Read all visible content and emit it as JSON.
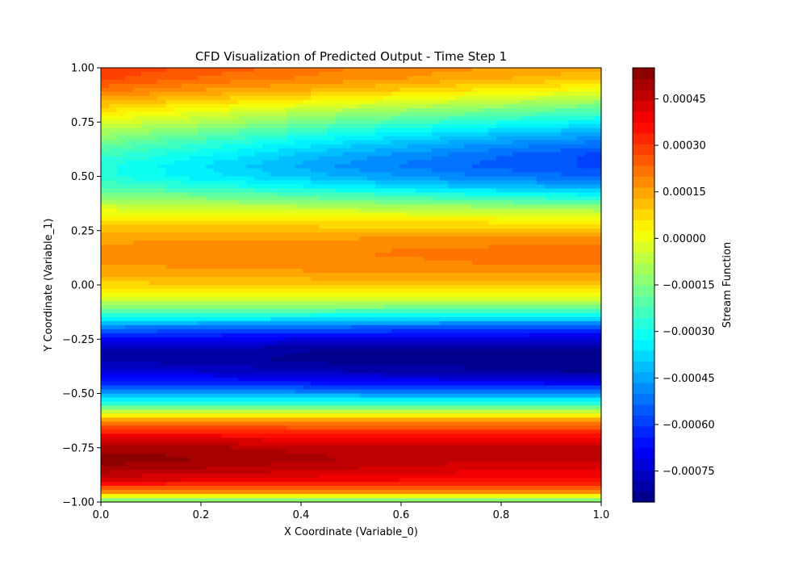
{
  "chart_data": {
    "type": "heatmap",
    "title": "CFD Visualization of Predicted Output - Time Step 1",
    "xlabel": "X Coordinate (Variable_0)",
    "ylabel": "Y Coordinate (Variable_1)",
    "colorbar_label": "Stream Function",
    "colormap": "jet",
    "xlim": [
      0.0,
      1.0
    ],
    "ylim": [
      -1.0,
      1.0
    ],
    "x_ticks": [
      "0.0",
      "0.2",
      "0.4",
      "0.6",
      "0.8",
      "1.0"
    ],
    "y_ticks": [
      "−1.00",
      "−0.75",
      "−0.50",
      "−0.25",
      "0.00",
      "0.25",
      "0.50",
      "0.75",
      "1.00"
    ],
    "colorbar_range": [
      -0.00085,
      0.00055
    ],
    "colorbar_ticks": [
      {
        "value": 0.00045,
        "label": "0.00045"
      },
      {
        "value": 0.0003,
        "label": "0.00030"
      },
      {
        "value": 0.00015,
        "label": "0.00015"
      },
      {
        "value": 0.0,
        "label": "0.00000"
      },
      {
        "value": -0.00015,
        "label": "−0.00015"
      },
      {
        "value": -0.0003,
        "label": "−0.00030"
      },
      {
        "value": -0.00045,
        "label": "−0.00045"
      },
      {
        "value": -0.0006,
        "label": "−0.00060"
      },
      {
        "value": -0.00075,
        "label": "−0.00075"
      }
    ],
    "x": [
      0.0,
      0.25,
      0.5,
      0.75,
      1.0
    ],
    "y": [
      -1.0,
      -0.95,
      -0.9,
      -0.85,
      -0.8,
      -0.75,
      -0.7,
      -0.65,
      -0.6,
      -0.55,
      -0.5,
      -0.45,
      -0.4,
      -0.35,
      -0.3,
      -0.25,
      -0.2,
      -0.15,
      -0.1,
      -0.05,
      0.0,
      0.05,
      0.1,
      0.15,
      0.2,
      0.25,
      0.3,
      0.35,
      0.4,
      0.45,
      0.5,
      0.55,
      0.6,
      0.65,
      0.7,
      0.75,
      0.8,
      0.85,
      0.9,
      0.95,
      1.0
    ],
    "z": [
      [
        -0.0002,
        -0.0002,
        -0.0002,
        -0.0002,
        -0.0002
      ],
      [
        0.0002,
        0.0002,
        0.0002,
        0.0002,
        0.0002
      ],
      [
        0.00042,
        0.0004,
        0.00038,
        0.00036,
        0.00036
      ],
      [
        0.0005,
        0.00047,
        0.00044,
        0.00042,
        0.00041
      ],
      [
        0.00054,
        0.00051,
        0.00048,
        0.00046,
        0.00045
      ],
      [
        0.0005,
        0.00048,
        0.00046,
        0.00045,
        0.00045
      ],
      [
        0.0004,
        0.00039,
        0.00038,
        0.00038,
        0.00038
      ],
      [
        0.00025,
        0.00025,
        0.00025,
        0.00025,
        0.00025
      ],
      [
        5e-05,
        5e-05,
        5e-05,
        5e-05,
        5e-05
      ],
      [
        -0.00025,
        -0.00025,
        -0.00025,
        -0.00025,
        -0.00025
      ],
      [
        -0.00045,
        -0.00046,
        -0.00047,
        -0.00048,
        -0.00048
      ],
      [
        -0.00062,
        -0.00064,
        -0.00066,
        -0.00068,
        -0.0007
      ],
      [
        -0.00072,
        -0.00075,
        -0.00078,
        -0.0008,
        -0.00082
      ],
      [
        -0.00078,
        -0.00081,
        -0.00083,
        -0.00084,
        -0.00085
      ],
      [
        -0.00078,
        -0.0008,
        -0.00082,
        -0.00083,
        -0.00083
      ],
      [
        -0.00068,
        -0.0007,
        -0.00072,
        -0.00073,
        -0.00074
      ],
      [
        -0.00052,
        -0.00054,
        -0.00056,
        -0.00057,
        -0.00058
      ],
      [
        -0.0003,
        -0.00032,
        -0.00034,
        -0.00036,
        -0.00036
      ],
      [
        -0.00012,
        -0.00013,
        -0.00014,
        -0.00015,
        -0.00015
      ],
      [
        0.0,
        0.0,
        0.0,
        0.0,
        0.0
      ],
      [
        8e-05,
        9e-05,
        0.0001,
        0.0001,
        0.0001
      ],
      [
        0.00014,
        0.00015,
        0.00016,
        0.00017,
        0.00017
      ],
      [
        0.00017,
        0.00018,
        0.00019,
        0.0002,
        0.00021
      ],
      [
        0.00018,
        0.00019,
        0.0002,
        0.00021,
        0.00022
      ],
      [
        0.00016,
        0.00017,
        0.00018,
        0.00019,
        0.00019
      ],
      [
        0.00012,
        0.00012,
        0.00012,
        0.00012,
        0.00012
      ],
      [
        6e-05,
        6e-05,
        5e-05,
        4e-05,
        3e-05
      ],
      [
        -2e-05,
        -4e-05,
        -6e-05,
        -8e-05,
        -0.0001
      ],
      [
        -0.00012,
        -0.00016,
        -0.0002,
        -0.00024,
        -0.00028
      ],
      [
        -0.00022,
        -0.00028,
        -0.00034,
        -0.0004,
        -0.00044
      ],
      [
        -0.00028,
        -0.00036,
        -0.00044,
        -0.0005,
        -0.00054
      ],
      [
        -0.00028,
        -0.00038,
        -0.00048,
        -0.00054,
        -0.00058
      ],
      [
        -0.00024,
        -0.00034,
        -0.00044,
        -0.00052,
        -0.00058
      ],
      [
        -0.00018,
        -0.00028,
        -0.00038,
        -0.00046,
        -0.00052
      ],
      [
        -0.0001,
        -0.0002,
        -0.0003,
        -0.00038,
        -0.00044
      ],
      [
        -2e-05,
        -0.0001,
        -0.0002,
        -0.00028,
        -0.00034
      ],
      [
        6e-05,
        -2e-05,
        -0.0001,
        -0.00016,
        -0.00022
      ],
      [
        0.00014,
        8e-05,
        2e-05,
        -4e-05,
        -0.0001
      ],
      [
        0.00022,
        0.00016,
        0.00012,
        6e-05,
        2e-05
      ],
      [
        0.00028,
        0.00022,
        0.00018,
        0.00014,
        0.0001
      ],
      [
        0.0003,
        0.00025,
        0.0002,
        0.00017,
        0.00014
      ]
    ]
  }
}
